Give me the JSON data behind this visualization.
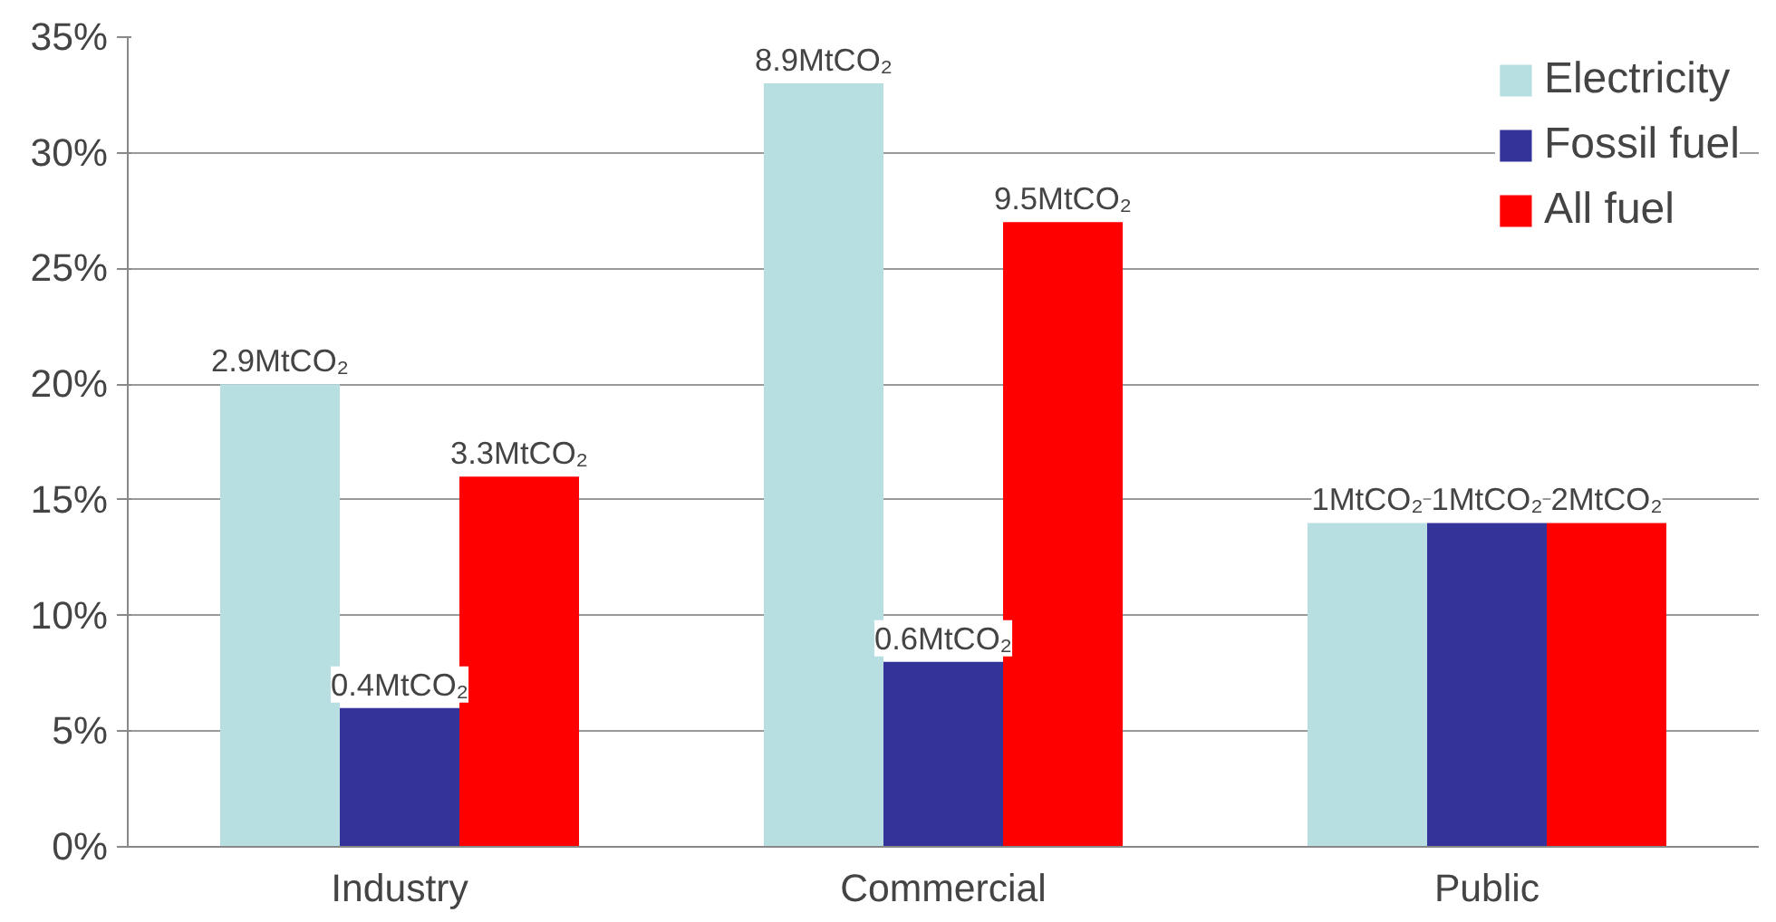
{
  "chart_data": {
    "type": "bar",
    "categories": [
      "Industry",
      "Commercial",
      "Public"
    ],
    "series": [
      {
        "name": "Electricity",
        "color": "#b7dfe2",
        "values": [
          20,
          33,
          14
        ]
      },
      {
        "name": "Fossil fuel",
        "color": "#333399",
        "values": [
          6,
          8,
          14
        ]
      },
      {
        "name": "All fuel",
        "color": "#ff0000",
        "values": [
          16,
          27,
          14
        ]
      }
    ],
    "annotations": [
      "2.9MtCO₂",
      "0.4MtCO₂",
      "3.3MtCO₂",
      "8.9MtCO₂",
      "0.6MtCO₂",
      "9.5MtCO₂",
      "1MtCO₂",
      "1MtCO₂",
      "2MtCO₂"
    ],
    "ylim": [
      0,
      35
    ],
    "yticks": [
      {
        "value": 0,
        "label": "0%"
      },
      {
        "value": 5,
        "label": "5%"
      },
      {
        "value": 10,
        "label": "10%"
      },
      {
        "value": 15,
        "label": "15%"
      },
      {
        "value": 20,
        "label": "20%"
      },
      {
        "value": 25,
        "label": "25%"
      },
      {
        "value": 30,
        "label": "30%"
      },
      {
        "value": 35,
        "label": "35%"
      }
    ],
    "grid": "y",
    "legend": "top right"
  }
}
